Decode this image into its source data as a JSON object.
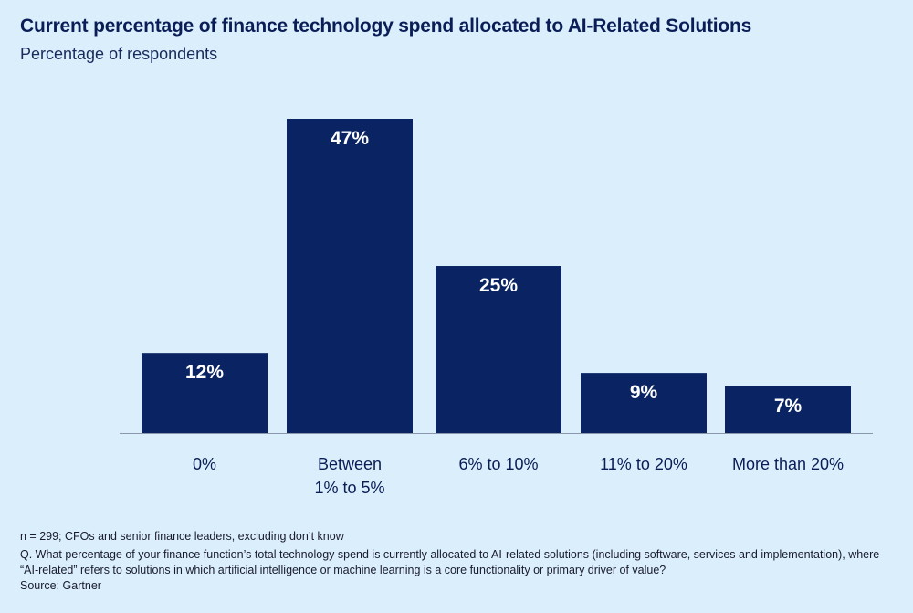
{
  "chart_data": {
    "type": "bar",
    "title": "Current percentage of finance technology spend allocated to AI-Related Solutions",
    "subtitle": "Percentage of respondents",
    "categories": [
      [
        "0%"
      ],
      [
        "Between",
        "1% to 5%"
      ],
      [
        "6% to 10%"
      ],
      [
        "11% to 20%"
      ],
      [
        "More than 20%"
      ]
    ],
    "values": [
      12,
      47,
      25,
      9,
      7
    ],
    "value_labels": [
      "12%",
      "47%",
      "25%",
      "9%",
      "7%"
    ],
    "xlabel": "",
    "ylabel": "",
    "ylim": [
      0,
      47
    ],
    "grid": false,
    "legend": "none",
    "bar_color": "#0a2463",
    "label_color": "#ffffff"
  },
  "notes": {
    "sample": "n = 299; CFOs and senior finance leaders, excluding don’t know",
    "question": "Q. What percentage of your finance function’s total technology spend is currently allocated to AI-related solutions (including software, services and implementation), where “AI-related” refers to solutions in which artificial intelligence or machine learning is a core functionality or primary driver of value?",
    "source": "Source: Gartner"
  }
}
